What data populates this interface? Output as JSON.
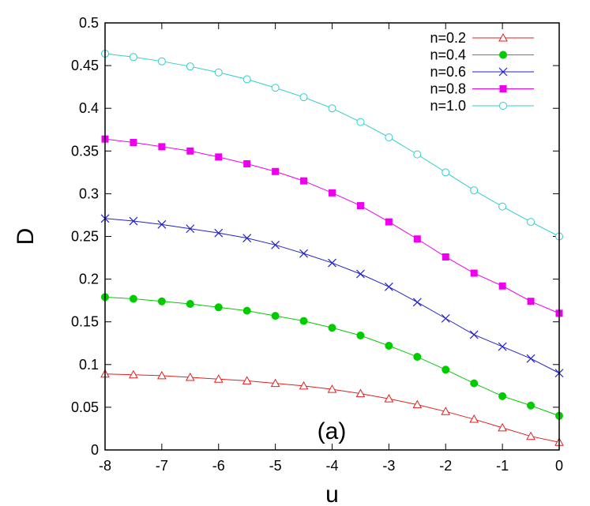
{
  "chart_data": {
    "type": "line",
    "title": "",
    "xlabel": "u",
    "ylabel": "D",
    "annotation": "(a)",
    "xlim": [
      -8,
      0
    ],
    "ylim": [
      0,
      0.5
    ],
    "xticks": [
      -8,
      -7,
      -6,
      -5,
      -4,
      -3,
      -2,
      -1,
      0
    ],
    "yticks": [
      0,
      0.05,
      0.1,
      0.15,
      0.2,
      0.25,
      0.3,
      0.35,
      0.4,
      0.45,
      0.5
    ],
    "xtick_labels": [
      "-8",
      "-7",
      "-6",
      "-5",
      "-4",
      "-3",
      "-2",
      "-1",
      "0"
    ],
    "ytick_labels": [
      "0",
      "0.05",
      "0.1",
      "0.15",
      "0.2",
      "0.25",
      "0.3",
      "0.35",
      "0.4",
      "0.45",
      "0.5"
    ],
    "grid": false,
    "legend_position": "top-right",
    "x": [
      -8,
      -7.5,
      -7,
      -6.5,
      -6,
      -5.5,
      -5,
      -4.5,
      -4,
      -3.5,
      -3,
      -2.5,
      -2,
      -1.5,
      -1,
      -0.5,
      0
    ],
    "series": [
      {
        "name": "n=0.2",
        "color": "#e02020",
        "marker": "triangle-open",
        "values": [
          0.089,
          0.088,
          0.087,
          0.085,
          0.083,
          0.081,
          0.078,
          0.075,
          0.071,
          0.066,
          0.06,
          0.053,
          0.045,
          0.036,
          0.026,
          0.016,
          0.009
        ]
      },
      {
        "name": "n=0.4",
        "color": "#00cc00",
        "marker": "circle-filled",
        "values": [
          0.179,
          0.177,
          0.174,
          0.171,
          0.167,
          0.163,
          0.157,
          0.151,
          0.143,
          0.134,
          0.122,
          0.109,
          0.094,
          0.078,
          0.063,
          0.052,
          0.04
        ]
      },
      {
        "name": "n=0.6",
        "color": "#2222cc",
        "marker": "x",
        "values": [
          0.271,
          0.268,
          0.264,
          0.259,
          0.254,
          0.248,
          0.24,
          0.23,
          0.219,
          0.206,
          0.191,
          0.173,
          0.154,
          0.135,
          0.121,
          0.107,
          0.09
        ]
      },
      {
        "name": "n=0.8",
        "color": "#ee00ee",
        "marker": "square-filled",
        "values": [
          0.364,
          0.36,
          0.355,
          0.35,
          0.343,
          0.335,
          0.326,
          0.315,
          0.301,
          0.286,
          0.267,
          0.247,
          0.226,
          0.207,
          0.192,
          0.174,
          0.16
        ]
      },
      {
        "name": "n=1.0",
        "color": "#33cccc",
        "marker": "circle-open",
        "values": [
          0.464,
          0.46,
          0.455,
          0.449,
          0.442,
          0.434,
          0.424,
          0.413,
          0.4,
          0.384,
          0.366,
          0.346,
          0.325,
          0.304,
          0.285,
          0.267,
          0.25
        ]
      }
    ]
  }
}
